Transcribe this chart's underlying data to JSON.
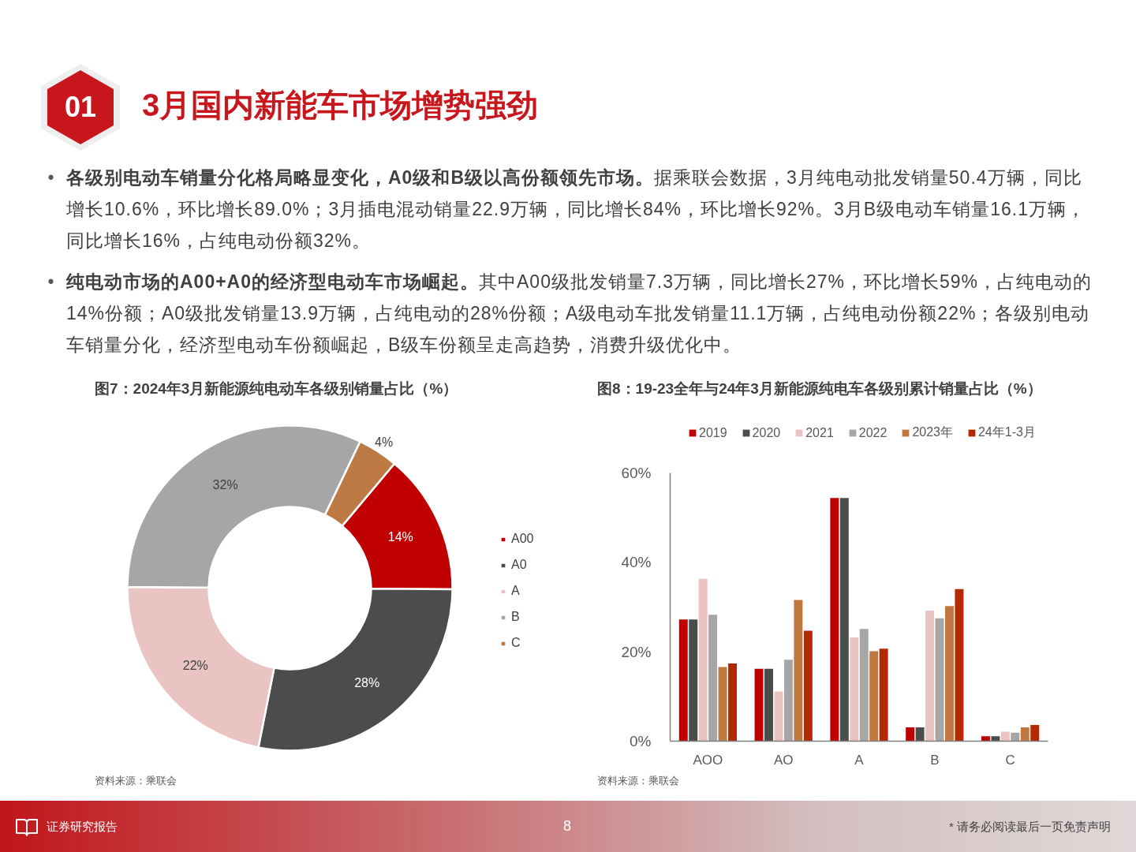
{
  "chart_data": [
    {
      "type": "other",
      "title": "3月国内新能车市场增势强劲",
      "annotations": [
        "01",
        "•",
        "各级别电动车销量分化格局略显变化，A0级和B级以高份额领先市场。",
        "据乘联会数据，3月纯电动批发销量50.4万辆，同比增长10.6%，环比增长89.0%；3月插电混动销量22.9万辆，同比增长84%，环比增长92%。3月B级电动车销量16.1万辆，同比增长16%，占纯电动份额32%。",
        "•",
        "纯电动市场的A00+A0的经济型电动车市场崛起。",
        "其中A00级批发销量7.3万辆，同比增长27%，环比增长59%，占纯电动的14%份额；A0级批发销量13.9万辆，占纯电动的28%份额；A级电动车批发销量11.1万辆，占纯电动份额22%；各级别电动车销量分化，经济型电动车份额崛起，B级车份额呈走高趋势，消费升级优化中。",
        "证券研究报告",
        "8",
        "* 请务必阅读最后一页免责声明"
      ]
    },
    {
      "type": "donut",
      "title": "图7：2024年3月新能源纯电动车各级别销量占比（%）",
      "categories": [
        "A00",
        "A0",
        "A",
        "B",
        "C"
      ],
      "values": [
        14,
        28,
        22,
        32,
        4
      ],
      "colors": [
        "#c00000",
        "#4b4c4e",
        "#eac3c3",
        "#a6a6a6",
        "#bd7a44"
      ],
      "value_labels": [
        "14%",
        "28%",
        "22%",
        "32%",
        "4%"
      ],
      "legend": "right",
      "annotations": [
        "资料来源：乘联会"
      ]
    },
    {
      "type": "bar",
      "title": "图8：19-23全年与24年3月新能源纯电车各级别累计销量占比（%）",
      "categories": [
        "AOO",
        "AO",
        "A",
        "B",
        "C"
      ],
      "series": [
        {
          "name": "2019",
          "color": "#c00000",
          "values": [
            27.2,
            16.2,
            54.4,
            3.1,
            1.1
          ]
        },
        {
          "name": "2020",
          "color": "#4b4c4e",
          "values": [
            27.2,
            16.2,
            54.4,
            3.1,
            1.1
          ]
        },
        {
          "name": "2021",
          "color": "#eac3c3",
          "values": [
            36.3,
            11.1,
            23.2,
            29.2,
            2.1
          ]
        },
        {
          "name": "2022",
          "color": "#a6a6a6",
          "values": [
            28.3,
            18.2,
            25.1,
            27.5,
            1.9
          ]
        },
        {
          "name": "2023年",
          "color": "#c07841",
          "values": [
            16.6,
            31.6,
            20.1,
            30.2,
            3.1
          ]
        },
        {
          "name": "24年1-3月",
          "color": "#b32a02",
          "values": [
            17.4,
            24.7,
            20.7,
            34.0,
            3.6
          ]
        }
      ],
      "ylim": [
        0,
        60
      ],
      "yticks": [
        {
          "value": 0,
          "label": "0%"
        },
        {
          "value": 20,
          "label": "20%"
        },
        {
          "value": 40,
          "label": "40%"
        },
        {
          "value": 60,
          "label": "60%"
        }
      ],
      "legend": "top",
      "annotations": [
        "资料来源：乘联会"
      ]
    }
  ]
}
